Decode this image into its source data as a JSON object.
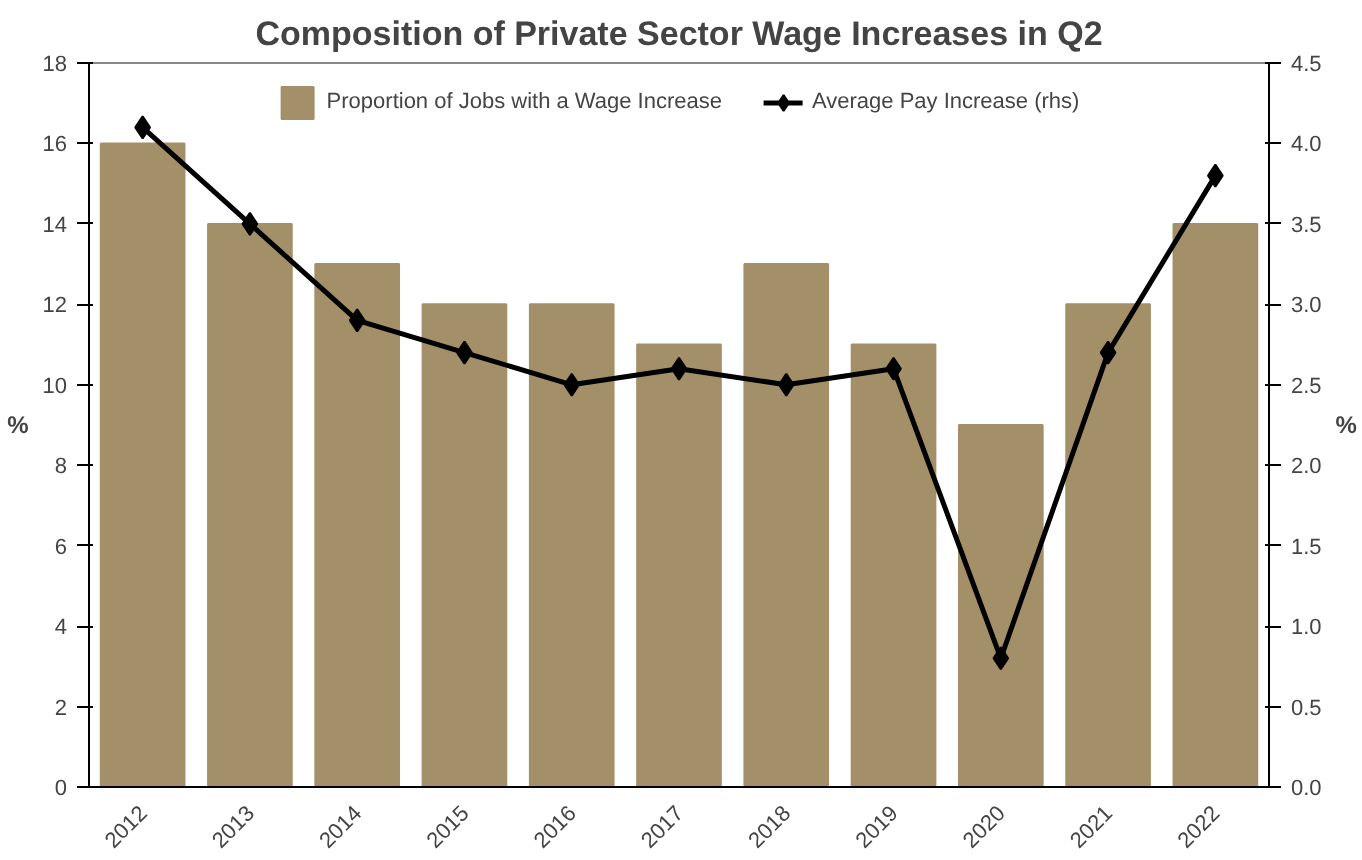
{
  "chart_data": {
    "type": "bar",
    "title": "Composition of Private Sector Wage Increases in Q2",
    "categories": [
      "2012",
      "2013",
      "2014",
      "2015",
      "2016",
      "2017",
      "2018",
      "2019",
      "2020",
      "2021",
      "2022"
    ],
    "series": [
      {
        "name": "Proportion of Jobs with a Wage Increase",
        "color": "#a38f68",
        "values": [
          16,
          14,
          13,
          12,
          12,
          11,
          13,
          11,
          9,
          12,
          14
        ]
      },
      {
        "name": "Average Pay Increase (rhs)",
        "type": "line",
        "axis": "y2",
        "color": "#000000",
        "marker": "diamond",
        "values": [
          4.1,
          3.5,
          2.9,
          2.7,
          2.5,
          2.6,
          2.5,
          2.6,
          0.8,
          2.7,
          3.8
        ]
      }
    ],
    "ylabel": "%",
    "y2label": "%",
    "ylim": [
      0,
      18
    ],
    "yticks": [
      0,
      2,
      4,
      6,
      8,
      10,
      12,
      14,
      16,
      18
    ],
    "y2lim": [
      0,
      4.5
    ],
    "y2ticks": [
      {
        "value": 0,
        "label": "0.0"
      },
      {
        "value": 0.5,
        "label": "0.5"
      },
      {
        "value": 1,
        "label": "1.0"
      },
      {
        "value": 1.5,
        "label": "1.5"
      },
      {
        "value": 2,
        "label": "2.0"
      },
      {
        "value": 2.5,
        "label": "2.5"
      },
      {
        "value": 3,
        "label": "3.0"
      },
      {
        "value": 3.5,
        "label": "3.5"
      },
      {
        "value": 4,
        "label": "4.0"
      },
      {
        "value": 4.5,
        "label": "4.5"
      }
    ],
    "grid": false,
    "legend": "top"
  }
}
